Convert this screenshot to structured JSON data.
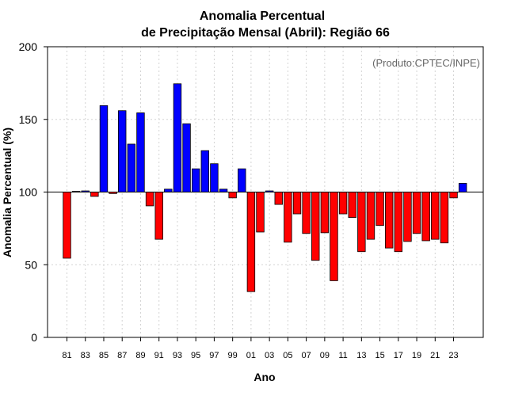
{
  "chart_data": {
    "type": "bar",
    "title_line1": "Anomalia Percentual",
    "title_line2": "de Precipitação Mensal (Abril): Região 66",
    "xlabel": "Ano",
    "ylabel": "Anomalia Percentual (%)",
    "credit": "(Produto:CPTEC/INPE)",
    "ylim": [
      0,
      200
    ],
    "yticks": [
      0,
      50,
      100,
      150,
      200
    ],
    "baseline": 100,
    "colors": {
      "above": "#0000ff",
      "below": "#ff0000",
      "outline": "#000000",
      "grid": "#d3d3d3"
    },
    "categories": [
      "81",
      "82",
      "83",
      "84",
      "85",
      "86",
      "87",
      "88",
      "89",
      "90",
      "91",
      "92",
      "93",
      "94",
      "95",
      "96",
      "97",
      "98",
      "99",
      "00",
      "01",
      "02",
      "03",
      "04",
      "05",
      "06",
      "07",
      "08",
      "09",
      "10",
      "11",
      "12",
      "13",
      "14",
      "15",
      "16",
      "17",
      "18",
      "19",
      "20",
      "21",
      "22",
      "23",
      "24"
    ],
    "xtick_labels": [
      "81",
      "83",
      "85",
      "87",
      "89",
      "91",
      "93",
      "95",
      "97",
      "99",
      "01",
      "03",
      "05",
      "07",
      "09",
      "11",
      "13",
      "15",
      "17",
      "19",
      "21",
      "23"
    ],
    "values": [
      54.5,
      100.5,
      100.8,
      97,
      159.5,
      99,
      156,
      133,
      154.5,
      90.5,
      67.5,
      102,
      174.5,
      147,
      116,
      128.5,
      119.5,
      102,
      96,
      116,
      31.5,
      72.5,
      100.8,
      91.5,
      65.5,
      85,
      71.5,
      53,
      72,
      39,
      85,
      82.5,
      59,
      67.5,
      77,
      61.5,
      59,
      66,
      71.5,
      66.5,
      67.5,
      65,
      96,
      106
    ]
  }
}
